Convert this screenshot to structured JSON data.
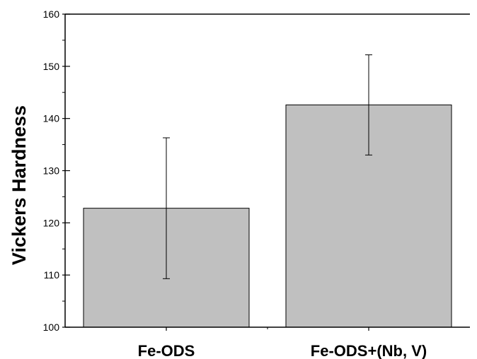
{
  "chart_data": {
    "type": "bar",
    "title": "",
    "xlabel": "",
    "ylabel": "Vickers Hardness",
    "categories": [
      "Fe-ODS",
      "Fe-ODS+(Nb, V)"
    ],
    "series": [
      {
        "values": [
          122.8,
          142.6
        ],
        "error": [
          13.5,
          9.6
        ]
      }
    ],
    "ylim": [
      100,
      160
    ],
    "yticks": [
      100,
      110,
      120,
      130,
      140,
      150,
      160
    ],
    "ytick_labels": [
      "100",
      "110",
      "120",
      "130",
      "140",
      "150",
      "160"
    ],
    "grid": false,
    "legend": "none",
    "colors": {
      "bar_fill": "#c0c0c0",
      "bar_stroke": "#000000",
      "axis": "#000000"
    }
  }
}
